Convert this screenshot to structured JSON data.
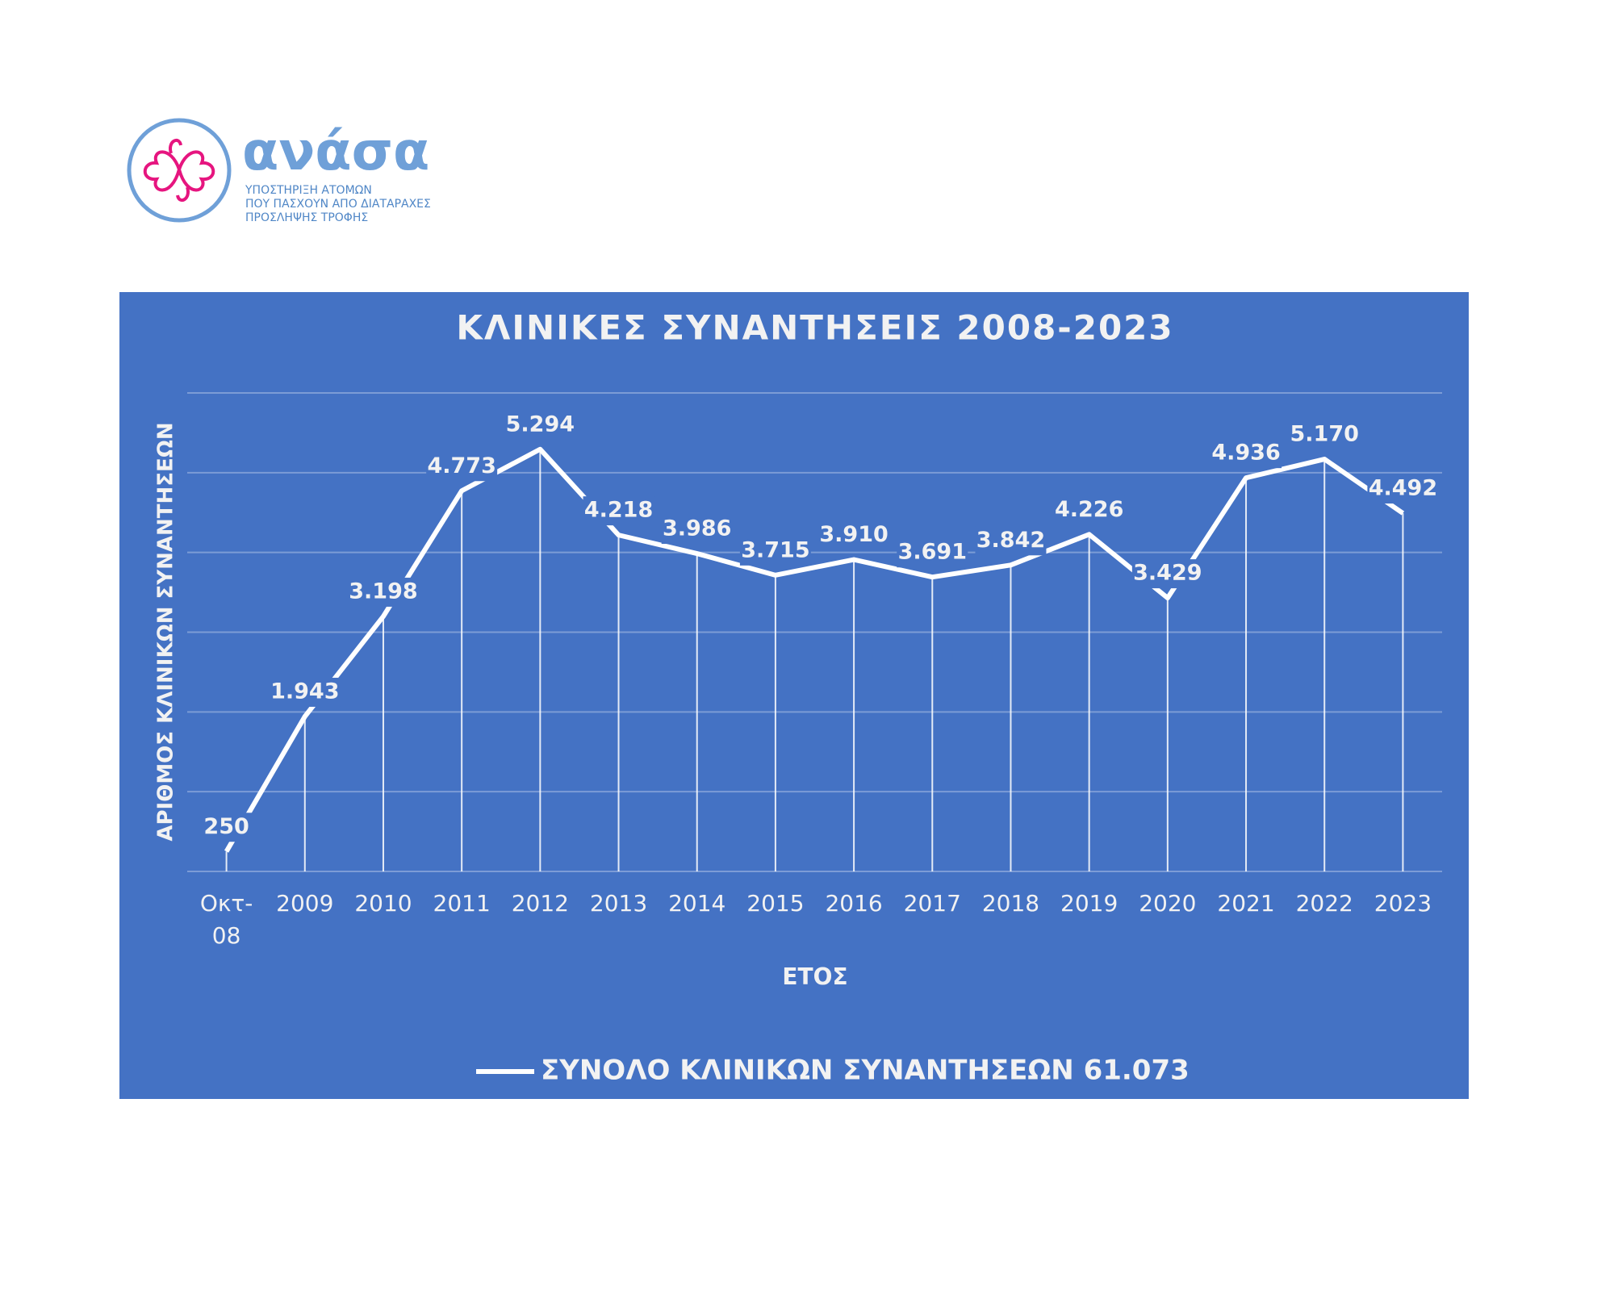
{
  "logo": {
    "name": "ανάσα",
    "lines": [
      "ΥΠΟΣΤΗΡΙΞΗ ΑΤΟΜΩΝ",
      "ΠΟΥ ΠΑΣΧΟΥΝ ΑΠΟ ΔΙΑΤΑΡΑΧΕΣ",
      "ΠΡΟΣΛΗΨΗΣ ΤΡΟΦΗΣ"
    ]
  },
  "chart_data": {
    "type": "line",
    "title": "ΚΛΙΝΙΚΕΣ ΣΥΝΑΝΤΗΣΕΙΣ 2008-2023",
    "x_label": "ΕΤΟΣ",
    "y_label": "ΑΡΙΘΜΟΣ ΚΛΙΝΙΚΩΝ ΣΥΝΑΝΤΗΣΕΩΝ",
    "categories": [
      "Οκτ-08",
      "2009",
      "2010",
      "2011",
      "2012",
      "2013",
      "2014",
      "2015",
      "2016",
      "2017",
      "2018",
      "2019",
      "2020",
      "2021",
      "2022",
      "2023"
    ],
    "series": [
      {
        "name": "ΣΥΝΟΛΟ ΚΛΙΝΙΚΩΝ ΣΥΝΑΝΤΗΣΕΩΝ 61.073",
        "color": "#ffffff",
        "values": [
          250,
          1943,
          3198,
          4773,
          5294,
          4218,
          3986,
          3715,
          3910,
          3691,
          3842,
          4226,
          3429,
          4936,
          5170,
          4492
        ],
        "value_labels": [
          "250",
          "1.943",
          "3.198",
          "4.773",
          "5.294",
          "4.218",
          "3.986",
          "3.715",
          "3.910",
          "3.691",
          "3.842",
          "4.226",
          "3.429",
          "4.936",
          "5.170",
          "4.492"
        ]
      }
    ],
    "ylim": [
      0,
      6000
    ],
    "yticks": [
      0,
      1000,
      2000,
      3000,
      4000,
      5000,
      6000
    ],
    "grid": true,
    "drop_lines": true,
    "legend": "bottom",
    "background": "#4472c4"
  }
}
